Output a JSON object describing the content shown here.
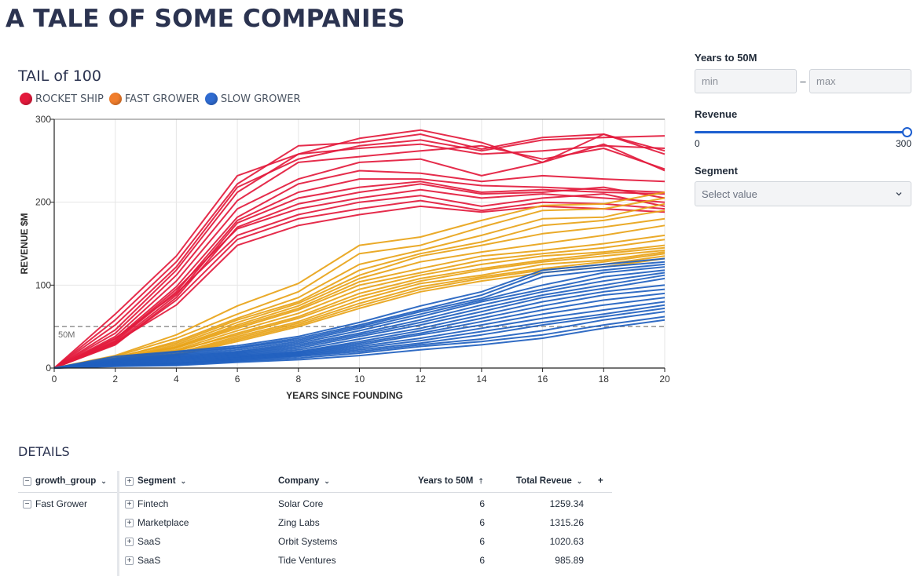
{
  "page": {
    "title": "A TALE OF SOME COMPANIES"
  },
  "chart": {
    "title": "TAIL of 100",
    "legend": [
      {
        "label": "ROCKET SHIP",
        "color": "#e31a3c"
      },
      {
        "label": "FAST GROWER",
        "color": "#f07d2c"
      },
      {
        "label": "SLOW GROWER",
        "color": "#2f6bd0"
      }
    ],
    "threshold_label": "50M"
  },
  "chart_data": {
    "type": "line",
    "xlabel": "YEARS SINCE FOUNDING",
    "ylabel": "REVENUE $M",
    "xlim": [
      0,
      20
    ],
    "ylim": [
      0,
      300
    ],
    "x_ticks": [
      0,
      2,
      4,
      6,
      8,
      10,
      12,
      14,
      16,
      18,
      20
    ],
    "y_ticks": [
      0,
      100,
      200,
      300
    ],
    "x": [
      0,
      2,
      4,
      6,
      8,
      10,
      12,
      14,
      16,
      18,
      20
    ],
    "threshold": {
      "y": 50,
      "label": "50M"
    },
    "groups": [
      {
        "name": "ROCKET SHIP",
        "color": "#e31a3c",
        "series": [
          [
            0,
            65,
            135,
            232,
            258,
            277,
            287,
            272,
            248,
            282,
            258
          ],
          [
            0,
            58,
            128,
            222,
            268,
            272,
            282,
            264,
            278,
            282,
            262
          ],
          [
            0,
            52,
            122,
            218,
            252,
            268,
            275,
            262,
            275,
            278,
            280
          ],
          [
            0,
            46,
            118,
            212,
            258,
            265,
            270,
            258,
            262,
            268,
            265
          ],
          [
            0,
            42,
            112,
            202,
            248,
            255,
            262,
            268,
            252,
            265,
            240
          ],
          [
            0,
            38,
            105,
            192,
            228,
            248,
            252,
            232,
            248,
            270,
            238
          ],
          [
            0,
            35,
            98,
            182,
            222,
            238,
            235,
            225,
            232,
            228,
            225
          ],
          [
            0,
            32,
            92,
            178,
            212,
            228,
            228,
            220,
            218,
            215,
            212
          ],
          [
            0,
            30,
            88,
            175,
            205,
            218,
            225,
            212,
            215,
            212,
            210
          ],
          [
            0,
            28,
            85,
            170,
            198,
            212,
            222,
            210,
            212,
            218,
            205
          ],
          [
            0,
            33,
            95,
            168,
            192,
            205,
            215,
            205,
            210,
            205,
            200
          ],
          [
            0,
            36,
            90,
            160,
            185,
            200,
            208,
            195,
            205,
            210,
            195
          ],
          [
            0,
            29,
            82,
            155,
            180,
            192,
            202,
            190,
            200,
            198,
            192
          ],
          [
            0,
            31,
            76,
            148,
            172,
            185,
            195,
            188,
            195,
            192,
            188
          ]
        ]
      },
      {
        "name": "FAST GROWER",
        "color": "#e8a317",
        "series": [
          [
            0,
            15,
            40,
            75,
            102,
            148,
            158,
            178,
            196,
            198,
            212
          ],
          [
            0,
            14,
            36,
            65,
            92,
            138,
            148,
            170,
            190,
            192,
            205
          ],
          [
            0,
            12,
            32,
            60,
            85,
            125,
            142,
            160,
            180,
            182,
            198
          ],
          [
            0,
            13,
            30,
            58,
            80,
            118,
            138,
            152,
            172,
            178,
            190
          ],
          [
            0,
            11,
            28,
            55,
            78,
            112,
            135,
            148,
            162,
            170,
            180
          ],
          [
            0,
            10,
            26,
            52,
            75,
            108,
            128,
            140,
            150,
            160,
            172
          ],
          [
            0,
            12,
            25,
            50,
            72,
            104,
            120,
            135,
            142,
            150,
            160
          ],
          [
            0,
            9,
            24,
            48,
            70,
            100,
            115,
            130,
            138,
            145,
            155
          ],
          [
            0,
            10,
            22,
            45,
            66,
            95,
            112,
            125,
            135,
            140,
            148
          ],
          [
            0,
            8,
            20,
            42,
            62,
            90,
            108,
            120,
            130,
            138,
            145
          ],
          [
            0,
            9,
            21,
            40,
            60,
            86,
            105,
            118,
            128,
            135,
            142
          ],
          [
            0,
            8,
            18,
            38,
            56,
            82,
            102,
            112,
            125,
            130,
            140
          ],
          [
            0,
            7,
            17,
            36,
            54,
            78,
            98,
            110,
            120,
            128,
            138
          ],
          [
            0,
            7,
            16,
            34,
            52,
            75,
            95,
            108,
            118,
            125,
            135
          ],
          [
            0,
            6,
            15,
            32,
            50,
            72,
            92,
            105,
            115,
            122,
            132
          ]
        ]
      },
      {
        "name": "SLOW GROWER",
        "color": "#1f5fbf",
        "series": [
          [
            0,
            14,
            20,
            27,
            38,
            55,
            75,
            92,
            118,
            125,
            132
          ],
          [
            0,
            12,
            19,
            25,
            36,
            52,
            70,
            88,
            115,
            122,
            128
          ],
          [
            0,
            11,
            17,
            24,
            34,
            50,
            68,
            84,
            110,
            118,
            125
          ],
          [
            0,
            10,
            16,
            22,
            32,
            48,
            65,
            82,
            100,
            115,
            122
          ],
          [
            0,
            9,
            15,
            20,
            30,
            45,
            62,
            80,
            95,
            110,
            118
          ],
          [
            0,
            8,
            14,
            19,
            28,
            42,
            58,
            76,
            92,
            105,
            115
          ],
          [
            0,
            8,
            13,
            18,
            26,
            40,
            55,
            72,
            88,
            100,
            112
          ],
          [
            0,
            7,
            12,
            17,
            24,
            38,
            52,
            68,
            85,
            96,
            108
          ],
          [
            0,
            7,
            11,
            16,
            22,
            35,
            48,
            64,
            80,
            92,
            100
          ],
          [
            0,
            6,
            10,
            15,
            20,
            32,
            45,
            60,
            75,
            88,
            95
          ],
          [
            0,
            6,
            9,
            14,
            19,
            30,
            42,
            56,
            70,
            82,
            90
          ],
          [
            0,
            5,
            8,
            13,
            18,
            28,
            40,
            52,
            65,
            76,
            85
          ],
          [
            0,
            5,
            7,
            12,
            17,
            26,
            36,
            48,
            60,
            70,
            80
          ],
          [
            0,
            4,
            6,
            11,
            16,
            24,
            33,
            44,
            55,
            65,
            76
          ],
          [
            0,
            4,
            6,
            10,
            15,
            22,
            30,
            40,
            52,
            62,
            72
          ],
          [
            0,
            3,
            5,
            9,
            14,
            20,
            28,
            35,
            45,
            58,
            68
          ],
          [
            0,
            3,
            4,
            8,
            12,
            18,
            26,
            32,
            40,
            52,
            62
          ],
          [
            0,
            2,
            3,
            7,
            10,
            15,
            22,
            28,
            36,
            48,
            58
          ]
        ]
      }
    ]
  },
  "sidebar": {
    "years_label": "Years to 50M",
    "min_placeholder": "min",
    "max_placeholder": "max",
    "range_dash": "–",
    "revenue_label": "Revenue",
    "revenue_min": "0",
    "revenue_max": "300",
    "revenue_value": 1.0,
    "segment_label": "Segment",
    "segment_placeholder": "Select value"
  },
  "details": {
    "title": "DETAILS",
    "headers": {
      "growth_group": "growth_group",
      "segment": "Segment",
      "company": "Company",
      "years": "Years to 50M",
      "revenue": "Total Reveue",
      "add": "+"
    },
    "group_value": "Fast Grower",
    "rows": [
      {
        "segment": "Fintech",
        "company": "Solar Core",
        "years": "6",
        "revenue": "1259.34"
      },
      {
        "segment": "Marketplace",
        "company": "Zing Labs",
        "years": "6",
        "revenue": "1315.26"
      },
      {
        "segment": "SaaS",
        "company": "Orbit Systems",
        "years": "6",
        "revenue": "1020.63"
      },
      {
        "segment": "SaaS",
        "company": "Tide Ventures",
        "years": "6",
        "revenue": "985.89"
      }
    ]
  }
}
